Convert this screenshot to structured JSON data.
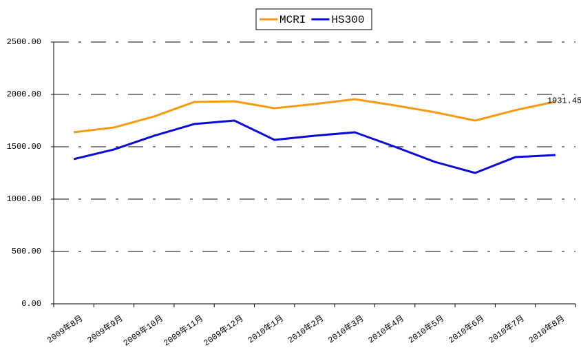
{
  "chart_data": {
    "type": "line",
    "categories": [
      "2009年8月",
      "2009年9月",
      "2009年10月",
      "2009年11月",
      "2009年12月",
      "2010年1月",
      "2010年2月",
      "2010年3月",
      "2010年4月",
      "2010年5月",
      "2010年6月",
      "2010年7月",
      "2010年8月"
    ],
    "series": [
      {
        "name": "MCRI",
        "color": "#f79a0e",
        "values": [
          1638,
          1684,
          1789,
          1928,
          1934,
          1868,
          1908,
          1954,
          1895,
          1829,
          1750,
          1849,
          1931.45
        ],
        "value_labels": [
          null,
          null,
          null,
          null,
          null,
          null,
          null,
          null,
          null,
          null,
          null,
          null,
          "1931.45"
        ]
      },
      {
        "name": "HS300",
        "color": "#0a0adc",
        "values": [
          1382,
          1474,
          1605,
          1717,
          1750,
          1566,
          1605,
          1638,
          1500,
          1355,
          1250,
          1401,
          1421
        ]
      }
    ],
    "ylim": [
      0,
      2500
    ],
    "yticks": [
      {
        "value": 0,
        "label": "0.00"
      },
      {
        "value": 500,
        "label": "500.00"
      },
      {
        "value": 1000,
        "label": "1000.00"
      },
      {
        "value": 1500,
        "label": "1500.00"
      },
      {
        "value": 2000,
        "label": "2000.00"
      },
      {
        "value": 2500,
        "label": "2500.00"
      }
    ],
    "grid": true,
    "legend": "top"
  }
}
